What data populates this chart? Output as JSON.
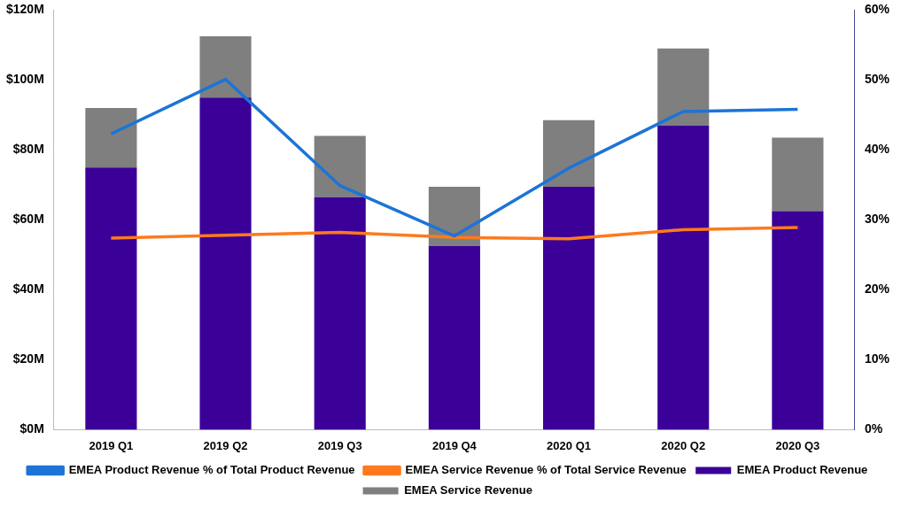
{
  "chart_data": {
    "type": "bar",
    "stacked": true,
    "categories": [
      "2019 Q1",
      "2019 Q2",
      "2019 Q3",
      "2019 Q4",
      "2020 Q1",
      "2020 Q2",
      "2020 Q3"
    ],
    "series": [
      {
        "name": "EMEA Product Revenue",
        "color": "#3a0098",
        "values": [
          75,
          95,
          66.5,
          52.5,
          69.5,
          87,
          62.5
        ]
      },
      {
        "name": "EMEA Service Revenue",
        "color": "#7f7f7f",
        "values": [
          17,
          17.5,
          17.5,
          17,
          19,
          22,
          21
        ]
      },
      {
        "name": "EMEA Product Revenue % of Total Product Revenue",
        "type": "line",
        "axis": "y2",
        "color": "#1c74d6",
        "values": [
          42.3,
          50.1,
          34.9,
          27.7,
          37.4,
          45.5,
          45.8
        ]
      },
      {
        "name": "EMEA Service Revenue % of Total Service Revenue",
        "type": "line",
        "axis": "y2",
        "color": "#ff7a1c",
        "values": [
          27.4,
          27.8,
          28.2,
          27.5,
          27.3,
          28.6,
          28.9
        ]
      }
    ],
    "ylim": [
      0,
      120
    ],
    "yticks": [
      {
        "value": 0,
        "label": "$0M"
      },
      {
        "value": 20,
        "label": "$20M"
      },
      {
        "value": 40,
        "label": "$40M"
      },
      {
        "value": 60,
        "label": "$60M"
      },
      {
        "value": 80,
        "label": "$80M"
      },
      {
        "value": 100,
        "label": "$100M"
      },
      {
        "value": 120,
        "label": "$120M"
      }
    ],
    "y2lim": [
      0,
      60
    ],
    "y2ticks": [
      {
        "value": 0,
        "label": "0%"
      },
      {
        "value": 10,
        "label": "10%"
      },
      {
        "value": 20,
        "label": "20%"
      },
      {
        "value": 30,
        "label": "30%"
      },
      {
        "value": 40,
        "label": "40%"
      },
      {
        "value": 50,
        "label": "50%"
      },
      {
        "value": 60,
        "label": "60%"
      }
    ],
    "grid": false,
    "legend": "bottom",
    "marker": "none",
    "line_style": "solid"
  }
}
